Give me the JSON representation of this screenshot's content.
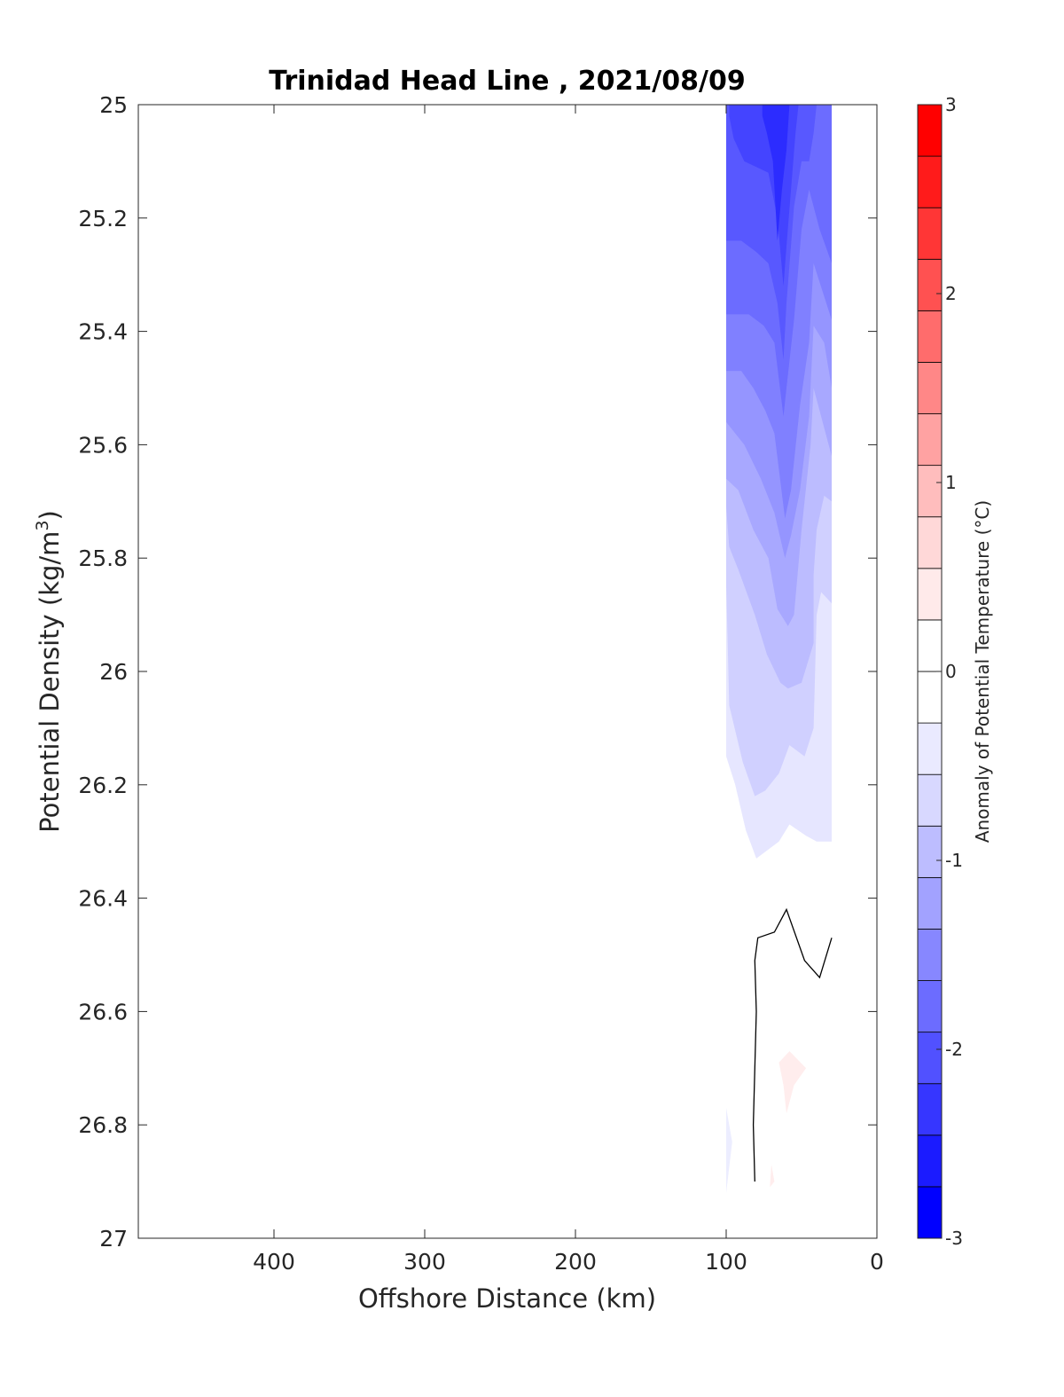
{
  "chart_data": {
    "type": "contour",
    "title": "Trinidad Head Line , 2021/08/09",
    "xlabel": "Offshore Distance (km)",
    "ylabel": "Potential Density (kg/m³)",
    "ylabel_parts": {
      "main": "Potential Density (kg/m",
      "sup": "3",
      "end": ")"
    },
    "x_axis": {
      "reversed": true,
      "lim": [
        490,
        0
      ],
      "ticks": [
        400,
        300,
        200,
        100,
        0
      ]
    },
    "y_axis": {
      "reversed": true,
      "lim": [
        25,
        27
      ],
      "ticks": [
        25,
        25.2,
        25.4,
        25.6,
        25.8,
        26,
        26.2,
        26.4,
        26.6,
        26.8,
        27
      ]
    },
    "grid": false,
    "colorbar": {
      "label": "Anomaly of Potential Temperature (°C)",
      "lim": [
        -3,
        3
      ],
      "ticks": [
        -3,
        -2,
        -1,
        0,
        1,
        2,
        3
      ],
      "level_step": 0.25,
      "colors": [
        "#0000ff",
        "#1b1bff",
        "#3636ff",
        "#5151ff",
        "#6c6cff",
        "#8787ff",
        "#a2a2ff",
        "#bdbdff",
        "#d8d8ff",
        "#eaeaff",
        "#ffffff",
        "#ffffff",
        "#ffeaea",
        "#ffd8d8",
        "#ffbdbd",
        "#ffa2a2",
        "#ff8787",
        "#ff6c6c",
        "#ff5151",
        "#ff3636",
        "#ff1b1b",
        "#ff0000"
      ]
    },
    "regions": [
      {
        "level": -0.5,
        "color": "#e6e6ff",
        "points": [
          [
            100.0,
            25.0
          ],
          [
            30.0,
            25.0
          ],
          [
            30.0,
            26.3
          ],
          [
            40.0,
            26.3
          ],
          [
            47.0,
            26.29
          ],
          [
            58.0,
            26.27
          ],
          [
            65.0,
            26.3
          ],
          [
            75.0,
            26.32
          ],
          [
            80.0,
            26.33
          ],
          [
            87.0,
            26.28
          ],
          [
            94.0,
            26.2
          ],
          [
            100.0,
            26.15
          ]
        ]
      },
      {
        "level": -0.75,
        "color": "#d0d0ff",
        "points": [
          [
            100.0,
            25.0
          ],
          [
            30.0,
            25.0
          ],
          [
            30.0,
            25.88
          ],
          [
            37.0,
            25.86
          ],
          [
            40.0,
            25.9
          ],
          [
            42.0,
            26.1
          ],
          [
            48.0,
            26.15
          ],
          [
            58.0,
            26.13
          ],
          [
            65.0,
            26.18
          ],
          [
            74.0,
            26.21
          ],
          [
            81.0,
            26.22
          ],
          [
            89.0,
            26.16
          ],
          [
            98.0,
            26.06
          ],
          [
            99.0,
            25.95
          ],
          [
            100.0,
            25.85
          ]
        ]
      },
      {
        "level": -1.0,
        "color": "#bcbcff",
        "points": [
          [
            100.0,
            25.0
          ],
          [
            30.0,
            25.0
          ],
          [
            30.0,
            25.7
          ],
          [
            35.0,
            25.69
          ],
          [
            40.0,
            25.75
          ],
          [
            42.0,
            25.83
          ],
          [
            42.0,
            25.95
          ],
          [
            50.0,
            26.02
          ],
          [
            59.0,
            26.03
          ],
          [
            64.0,
            26.02
          ],
          [
            73.0,
            25.97
          ],
          [
            81.0,
            25.9
          ],
          [
            92.0,
            25.82
          ],
          [
            98.0,
            25.78
          ],
          [
            100.0,
            25.71
          ]
        ]
      },
      {
        "level": -1.25,
        "color": "#a8a8ff",
        "points": [
          [
            100.0,
            25.0
          ],
          [
            30.0,
            25.0
          ],
          [
            30.0,
            25.62
          ],
          [
            37.0,
            25.55
          ],
          [
            42.0,
            25.5
          ],
          [
            44.0,
            25.6
          ],
          [
            50.0,
            25.75
          ],
          [
            55.0,
            25.9
          ],
          [
            59.0,
            25.92
          ],
          [
            66.0,
            25.89
          ],
          [
            72.0,
            25.8
          ],
          [
            82.0,
            25.75
          ],
          [
            92.0,
            25.68
          ],
          [
            100.0,
            25.66
          ]
        ]
      },
      {
        "level": -1.5,
        "color": "#9595ff",
        "points": [
          [
            100.0,
            25.0
          ],
          [
            30.0,
            25.0
          ],
          [
            30.0,
            25.5
          ],
          [
            35.0,
            25.42
          ],
          [
            42.0,
            25.39
          ],
          [
            45.0,
            25.55
          ],
          [
            51.0,
            25.68
          ],
          [
            57.0,
            25.76
          ],
          [
            61.0,
            25.8
          ],
          [
            68.0,
            25.72
          ],
          [
            77.0,
            25.66
          ],
          [
            88.0,
            25.6
          ],
          [
            100.0,
            25.56
          ]
        ]
      },
      {
        "level": -1.75,
        "color": "#8080ff",
        "points": [
          [
            100.0,
            25.0
          ],
          [
            30.0,
            25.0
          ],
          [
            30.0,
            25.38
          ],
          [
            36.0,
            25.33
          ],
          [
            42.0,
            25.28
          ],
          [
            45.0,
            25.42
          ],
          [
            51.0,
            25.53
          ],
          [
            57.0,
            25.68
          ],
          [
            61.0,
            25.73
          ],
          [
            68.0,
            25.58
          ],
          [
            74.0,
            25.54
          ],
          [
            82.0,
            25.5
          ],
          [
            90.0,
            25.47
          ],
          [
            100.0,
            25.47
          ]
        ]
      },
      {
        "level": -2.0,
        "color": "#6c6cff",
        "points": [
          [
            100.0,
            25.0
          ],
          [
            30.0,
            25.0
          ],
          [
            30.0,
            25.28
          ],
          [
            38.0,
            25.22
          ],
          [
            45.0,
            25.15
          ],
          [
            50.0,
            25.22
          ],
          [
            55.0,
            25.38
          ],
          [
            60.0,
            25.5
          ],
          [
            62.0,
            25.55
          ],
          [
            68.0,
            25.42
          ],
          [
            75.0,
            25.39
          ],
          [
            85.0,
            25.37
          ],
          [
            100.0,
            25.37
          ]
        ]
      },
      {
        "level": -2.25,
        "color": "#5858ff",
        "points": [
          [
            100.0,
            25.0
          ],
          [
            40.0,
            25.0
          ],
          [
            42.0,
            25.05
          ],
          [
            45.0,
            25.1
          ],
          [
            50.0,
            25.1
          ],
          [
            55.0,
            25.18
          ],
          [
            60.0,
            25.35
          ],
          [
            62.0,
            25.45
          ],
          [
            66.0,
            25.35
          ],
          [
            72.0,
            25.28
          ],
          [
            80.0,
            25.26
          ],
          [
            90.0,
            25.24
          ],
          [
            100.0,
            25.24
          ]
        ]
      },
      {
        "level": -2.5,
        "color": "#4444ff",
        "points": [
          [
            98.0,
            25.0
          ],
          [
            52.0,
            25.0
          ],
          [
            54.0,
            25.05
          ],
          [
            57.0,
            25.15
          ],
          [
            60.0,
            25.25
          ],
          [
            62.0,
            25.32
          ],
          [
            66.0,
            25.2
          ],
          [
            72.0,
            25.12
          ],
          [
            80.0,
            25.11
          ],
          [
            88.0,
            25.1
          ],
          [
            95.0,
            25.06
          ],
          [
            98.0,
            25.02
          ]
        ]
      },
      {
        "level": -2.75,
        "color": "#2c2cff",
        "points": [
          [
            76.0,
            25.0
          ],
          [
            58.0,
            25.0
          ],
          [
            60.0,
            25.08
          ],
          [
            63.0,
            25.15
          ],
          [
            66.0,
            25.24
          ],
          [
            69.0,
            25.1
          ],
          [
            73.0,
            25.05
          ],
          [
            76.0,
            25.02
          ]
        ]
      },
      {
        "level": -0.25,
        "color": "#ecedff",
        "points": [
          [
            100.0,
            26.77
          ],
          [
            96.0,
            26.83
          ],
          [
            100.0,
            26.92
          ]
        ]
      },
      {
        "level": 0.25,
        "color": "#ffeded",
        "points": [
          [
            65.0,
            26.69
          ],
          [
            58.0,
            26.67
          ],
          [
            47.0,
            26.7
          ],
          [
            55.0,
            26.73
          ],
          [
            60.0,
            26.78
          ],
          [
            62.0,
            26.73
          ]
        ]
      },
      {
        "level": 0.25,
        "color": "#ffeded",
        "points": [
          [
            70.0,
            26.87
          ],
          [
            68.0,
            26.9
          ],
          [
            71.0,
            26.91
          ]
        ]
      }
    ],
    "zero_contour": [
      [
        30.0,
        26.47
      ],
      [
        38.0,
        26.54
      ],
      [
        48.0,
        26.51
      ],
      [
        60.0,
        26.42
      ],
      [
        68.0,
        26.46
      ],
      [
        79.0,
        26.47
      ],
      [
        81.0,
        26.51
      ],
      [
        80.0,
        26.6
      ],
      [
        82.0,
        26.8
      ],
      [
        81.0,
        26.9
      ]
    ]
  }
}
